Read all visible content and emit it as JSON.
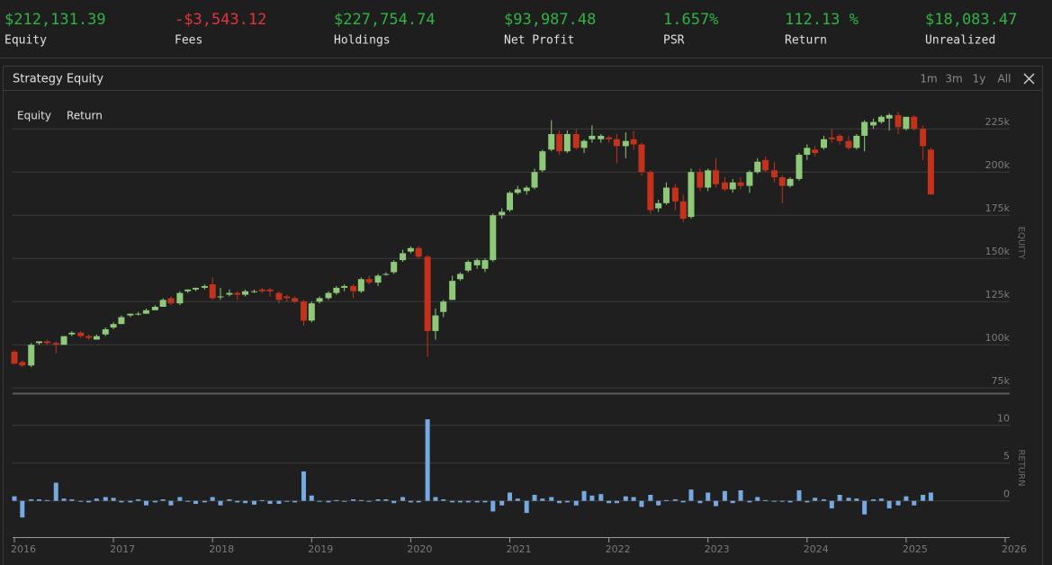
{
  "stats": [
    {
      "value": "$212,131.39",
      "label": "Equity",
      "color": "#2fb344"
    },
    {
      "value": "-$3,543.12",
      "label": "Fees",
      "color": "#e0353b"
    },
    {
      "value": "$227,754.74",
      "label": "Holdings",
      "color": "#2fb344"
    },
    {
      "value": "$93,987.48",
      "label": "Net Profit",
      "color": "#2fb344"
    },
    {
      "value": "1.657%",
      "label": "PSR",
      "color": "#2fb344"
    },
    {
      "value": "112.13 %",
      "label": "Return",
      "color": "#2fb344"
    },
    {
      "value": "$18,083.47",
      "label": "Unrealized",
      "color": "#2fb344"
    }
  ],
  "panel": {
    "title": "Strategy Equity",
    "ranges": [
      "1m",
      "3m",
      "1y",
      "All"
    ],
    "tabs": [
      "Equity",
      "Return"
    ]
  },
  "chart_data": [
    {
      "type": "candlestick",
      "y_label": "EQUITY",
      "up_color": "#8ec97a",
      "down_color": "#c4321b",
      "grid": true,
      "xlim": [
        2016,
        2026
      ],
      "ylim": [
        72000,
        247000
      ],
      "yticks": [
        {
          "value": 75000,
          "label": "75k"
        },
        {
          "value": 100000,
          "label": "100k"
        },
        {
          "value": 125000,
          "label": "125k"
        },
        {
          "value": 150000,
          "label": "150k"
        },
        {
          "value": 175000,
          "label": "175k"
        },
        {
          "value": 200000,
          "label": "200k"
        },
        {
          "value": 225000,
          "label": "225k"
        }
      ],
      "x": [
        2016,
        2016.08,
        2016.17,
        2016.25,
        2016.33,
        2016.42,
        2016.5,
        2016.58,
        2016.67,
        2016.75,
        2016.83,
        2016.92,
        2017,
        2017.08,
        2017.17,
        2017.25,
        2017.33,
        2017.42,
        2017.5,
        2017.58,
        2017.67,
        2017.75,
        2017.83,
        2017.92,
        2018,
        2018.08,
        2018.17,
        2018.25,
        2018.33,
        2018.42,
        2018.5,
        2018.58,
        2018.67,
        2018.75,
        2018.83,
        2018.92,
        2019,
        2019.08,
        2019.17,
        2019.25,
        2019.33,
        2019.42,
        2019.5,
        2019.58,
        2019.67,
        2019.75,
        2019.83,
        2019.92,
        2020,
        2020.08,
        2020.17,
        2020.25,
        2020.33,
        2020.42,
        2020.5,
        2020.58,
        2020.67,
        2020.75,
        2020.83,
        2020.92,
        2021,
        2021.08,
        2021.17,
        2021.25,
        2021.33,
        2021.42,
        2021.5,
        2021.58,
        2021.67,
        2021.75,
        2021.83,
        2021.92,
        2022,
        2022.08,
        2022.17,
        2022.25,
        2022.33,
        2022.42,
        2022.5,
        2022.58,
        2022.67,
        2022.75,
        2022.83,
        2022.92,
        2023,
        2023.08,
        2023.17,
        2023.25,
        2023.33,
        2023.42,
        2023.5,
        2023.58,
        2023.67,
        2023.75,
        2023.83,
        2023.92,
        2024,
        2024.08,
        2024.17,
        2024.25,
        2024.33,
        2024.42,
        2024.5,
        2024.58,
        2024.67,
        2024.75,
        2024.83,
        2024.92,
        2025,
        2025.08,
        2025.17,
        2025.25
      ],
      "open": [
        96000,
        90000,
        88000,
        101000,
        102000,
        101000,
        100000,
        106000,
        107000,
        105000,
        103000,
        106000,
        110000,
        112000,
        117000,
        118000,
        118000,
        120000,
        122000,
        127000,
        124000,
        131000,
        132000,
        133000,
        135000,
        128000,
        129000,
        130000,
        129000,
        131000,
        132000,
        132000,
        130000,
        128000,
        127000,
        125000,
        114000,
        125000,
        127000,
        130000,
        133000,
        134000,
        131000,
        138000,
        136000,
        141000,
        142000,
        149000,
        154000,
        156000,
        151000,
        108000,
        119000,
        126000,
        138000,
        143000,
        146000,
        144000,
        149000,
        175000,
        178000,
        188000,
        189000,
        191000,
        201000,
        213000,
        222000,
        212000,
        222000,
        214000,
        219000,
        219000,
        220000,
        219000,
        215000,
        219000,
        216000,
        200000,
        179000,
        182000,
        191000,
        183000,
        174000,
        200000,
        191000,
        201000,
        194000,
        190000,
        194000,
        192000,
        200000,
        207000,
        201000,
        197000,
        192000,
        196000,
        210000,
        213000,
        214000,
        220000,
        221000,
        218000,
        214000,
        221000,
        227000,
        229000,
        231000,
        233000,
        225000,
        232000,
        225000,
        213000
      ],
      "high": [
        97000,
        91000,
        101000,
        102000,
        103000,
        102000,
        105000,
        108000,
        108000,
        106000,
        106000,
        110000,
        113000,
        117000,
        118000,
        119000,
        121000,
        123000,
        127000,
        128000,
        131000,
        132000,
        133000,
        135000,
        139000,
        133000,
        132000,
        131000,
        132000,
        132000,
        133000,
        133000,
        131000,
        129000,
        128000,
        126000,
        125000,
        128000,
        131000,
        134000,
        135000,
        135000,
        139000,
        140000,
        141000,
        142000,
        149000,
        155000,
        157000,
        157000,
        152000,
        121000,
        126000,
        140000,
        142000,
        149000,
        150000,
        150000,
        176000,
        179000,
        189000,
        192000,
        192000,
        202000,
        213000,
        230000,
        224000,
        224000,
        225000,
        219000,
        227000,
        222000,
        221000,
        222000,
        223000,
        224000,
        217000,
        201000,
        184000,
        194000,
        193000,
        187000,
        202000,
        202000,
        202000,
        208000,
        197000,
        196000,
        197000,
        201000,
        208000,
        209000,
        206000,
        198000,
        197000,
        211000,
        216000,
        215000,
        221000,
        225000,
        222000,
        221000,
        222000,
        230000,
        231000,
        233000,
        234000,
        235000,
        232000,
        233000,
        227000,
        214000
      ],
      "low": [
        89000,
        87000,
        87000,
        100000,
        100000,
        95000,
        100000,
        105000,
        104000,
        103000,
        103000,
        105000,
        109000,
        112000,
        116000,
        117000,
        118000,
        120000,
        122000,
        123000,
        123000,
        130000,
        131000,
        132000,
        126000,
        126000,
        128000,
        126000,
        128000,
        130000,
        130000,
        128000,
        124000,
        125000,
        124000,
        111000,
        113000,
        124000,
        126000,
        129000,
        131000,
        127000,
        130000,
        135000,
        134000,
        140000,
        141000,
        148000,
        153000,
        150000,
        93000,
        103000,
        116000,
        126000,
        137000,
        142000,
        144000,
        142000,
        148000,
        173000,
        177000,
        187000,
        187000,
        190000,
        200000,
        212000,
        210000,
        211000,
        213000,
        211000,
        217000,
        217000,
        217000,
        205000,
        208000,
        213000,
        198000,
        176000,
        177000,
        181000,
        178000,
        171000,
        173000,
        189000,
        189000,
        191000,
        189000,
        188000,
        190000,
        188000,
        199000,
        200000,
        194000,
        182000,
        191000,
        195000,
        207000,
        209000,
        213000,
        217000,
        216000,
        213000,
        213000,
        212000,
        225000,
        228000,
        224000,
        222000,
        224000,
        224000,
        207000,
        187000
      ],
      "close": [
        89000,
        88000,
        100000,
        102000,
        101000,
        100000,
        105000,
        107000,
        105000,
        104000,
        105000,
        109000,
        112000,
        116000,
        118000,
        118000,
        120000,
        122000,
        126000,
        124000,
        130000,
        132000,
        133000,
        134000,
        127000,
        128000,
        130000,
        129000,
        131000,
        131000,
        131000,
        131000,
        126000,
        127000,
        125000,
        114000,
        124000,
        127000,
        130000,
        133000,
        134000,
        131000,
        138000,
        136000,
        140000,
        141000,
        148000,
        153000,
        156000,
        151000,
        108000,
        117000,
        125000,
        137000,
        141000,
        148000,
        149000,
        149000,
        175000,
        177000,
        188000,
        190000,
        191000,
        200000,
        212000,
        222000,
        212000,
        222000,
        214000,
        218000,
        221000,
        221000,
        219000,
        215000,
        218000,
        216000,
        200000,
        178000,
        182000,
        191000,
        183000,
        173000,
        200000,
        191000,
        201000,
        193000,
        190000,
        194000,
        192000,
        200000,
        206000,
        201000,
        197000,
        192000,
        196000,
        210000,
        214000,
        211000,
        219000,
        219000,
        218000,
        214000,
        221000,
        229000,
        229000,
        232000,
        233000,
        226000,
        232000,
        225000,
        215000,
        187000
      ]
    },
    {
      "type": "bar",
      "y_label": "RETURN",
      "color": "#76a9e0",
      "grid": true,
      "xlim": [
        2016,
        2026
      ],
      "xticks": [
        2016,
        2017,
        2018,
        2019,
        2020,
        2021,
        2022,
        2023,
        2024,
        2025,
        2026
      ],
      "ylim": [
        -4.8,
        13.9
      ],
      "yticks": [
        0,
        5,
        10
      ],
      "x": [
        2016,
        2016.08,
        2016.17,
        2016.25,
        2016.33,
        2016.42,
        2016.5,
        2016.58,
        2016.67,
        2016.75,
        2016.83,
        2016.92,
        2017,
        2017.08,
        2017.17,
        2017.25,
        2017.33,
        2017.42,
        2017.5,
        2017.58,
        2017.67,
        2017.75,
        2017.83,
        2017.92,
        2018,
        2018.08,
        2018.17,
        2018.25,
        2018.33,
        2018.42,
        2018.5,
        2018.58,
        2018.67,
        2018.75,
        2018.83,
        2018.92,
        2019,
        2019.08,
        2019.17,
        2019.25,
        2019.33,
        2019.42,
        2019.5,
        2019.58,
        2019.67,
        2019.75,
        2019.83,
        2019.92,
        2020,
        2020.08,
        2020.17,
        2020.25,
        2020.33,
        2020.42,
        2020.5,
        2020.58,
        2020.67,
        2020.75,
        2020.83,
        2020.92,
        2021,
        2021.08,
        2021.17,
        2021.25,
        2021.33,
        2021.42,
        2021.5,
        2021.58,
        2021.67,
        2021.75,
        2021.83,
        2021.92,
        2022,
        2022.08,
        2022.17,
        2022.25,
        2022.33,
        2022.42,
        2022.5,
        2022.58,
        2022.67,
        2022.75,
        2022.83,
        2022.92,
        2023,
        2023.08,
        2023.17,
        2023.25,
        2023.33,
        2023.42,
        2023.5,
        2023.58,
        2023.67,
        2023.75,
        2023.83,
        2023.92,
        2024,
        2024.08,
        2024.17,
        2024.25,
        2024.33,
        2024.42,
        2024.5,
        2024.58,
        2024.67,
        2024.75,
        2024.83,
        2024.92,
        2025,
        2025.08,
        2025.17,
        2025.25
      ],
      "values": [
        0.6,
        -2.2,
        0.2,
        0.2,
        0.1,
        2.4,
        0.3,
        0.2,
        -0.1,
        -0.2,
        0.3,
        0.5,
        0.4,
        -0.2,
        -0.2,
        0.2,
        -0.6,
        -0.2,
        0.2,
        -0.6,
        0.5,
        -0.1,
        -0.4,
        -0.2,
        0.5,
        -0.6,
        0.2,
        -0.2,
        -0.3,
        -0.5,
        0.1,
        -0.4,
        -0.4,
        -0.1,
        -0.2,
        3.9,
        0.7,
        -0.1,
        -0.2,
        0.1,
        -0.1,
        0.2,
        0.1,
        -0.1,
        0.2,
        0.2,
        -0.3,
        0.5,
        -0.2,
        -0.2,
        10.8,
        0.5,
        0.2,
        -0.2,
        -0.2,
        -0.2,
        -0.2,
        -0.2,
        -1.4,
        -0.6,
        1.1,
        0.3,
        -1.6,
        0.8,
        0.3,
        0.5,
        -0.3,
        -0.2,
        -0.6,
        1.3,
        0.7,
        0.9,
        -0.3,
        -0.3,
        0.6,
        0.5,
        -0.8,
        0.8,
        -0.6,
        0.1,
        0.2,
        -0.2,
        1.5,
        -0.3,
        1.1,
        -0.7,
        1.3,
        -0.3,
        1.4,
        -0.2,
        0.5,
        0.1,
        -0.1,
        -0.1,
        -0.2,
        1.4,
        -0.2,
        0.4,
        0.2,
        -1.0,
        0.8,
        0.4,
        0.3,
        -1.8,
        0.2,
        0.3,
        -1.0,
        -0.6,
        0.6,
        -0.6,
        0.8,
        1.1
      ]
    }
  ]
}
